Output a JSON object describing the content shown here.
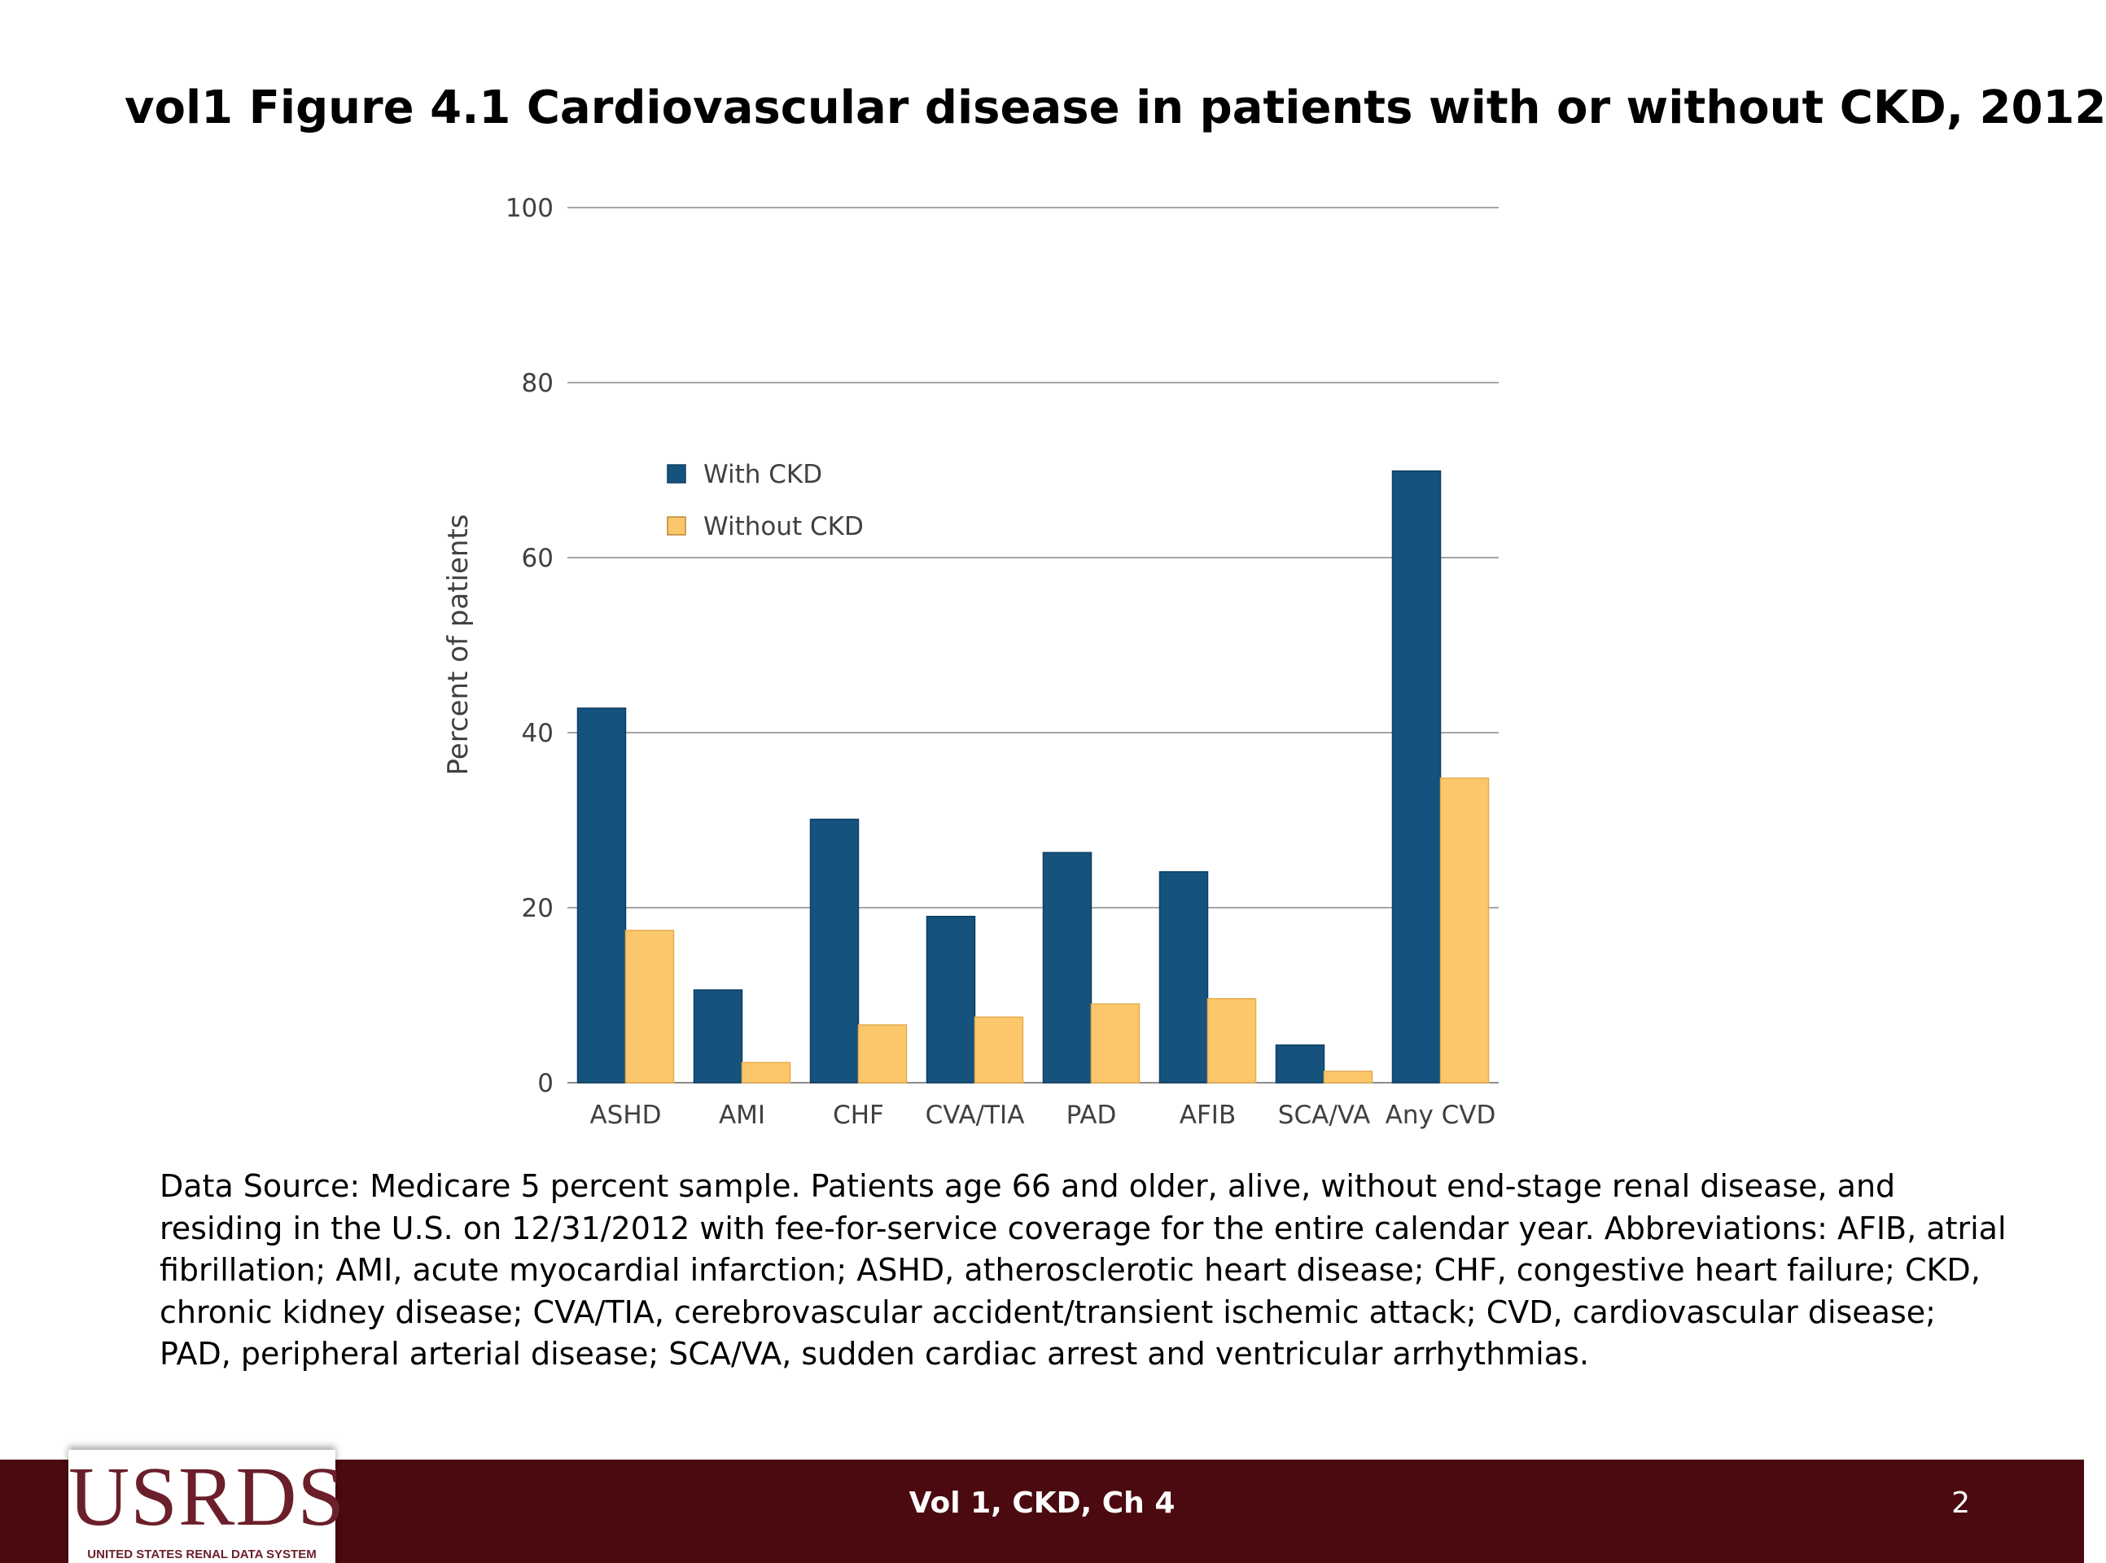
{
  "slide": {
    "title": "vol1  Figure 4.1  Cardiovascular disease in patients with or without CKD, 2012",
    "note": "Data Source: Medicare 5 percent sample. Patients age 66 and older, alive, without end-stage renal disease, and residing in the U.S. on 12/31/2012 with fee-for-service coverage for the entire calendar year. Abbreviations: AFIB, atrial fibrillation; AMI, acute myocardial infarction; ASHD, atherosclerotic heart disease; CHF, congestive heart failure; CKD, chronic kidney disease; CVA/TIA, cerebrovascular accident/transient ischemic attack; CVD, cardiovascular disease; PAD, peripheral arterial disease; SCA/VA, sudden cardiac arrest and ventricular arrhythmias.",
    "footer": "Vol 1, CKD, Ch 4",
    "page_number": "2",
    "logo_text": "USRDS",
    "logo_subtext": "UNITED STATES RENAL DATA SYSTEM"
  },
  "chart_data": {
    "type": "bar",
    "title": "",
    "xlabel": "",
    "ylabel": "Percent of patients",
    "ylim": [
      0,
      100
    ],
    "yticks": [
      0,
      20,
      40,
      60,
      80,
      100
    ],
    "grid": true,
    "legend_position": "top-left",
    "categories": [
      "ASHD",
      "AMI",
      "CHF",
      "CVA/TIA",
      "PAD",
      "AFIB",
      "SCA/VA",
      "Any CVD"
    ],
    "series": [
      {
        "name": "With CKD",
        "color": "#15527e",
        "values": [
          42.8,
          10.6,
          30.1,
          19.0,
          26.3,
          24.1,
          4.3,
          69.9
        ]
      },
      {
        "name": "Without CKD",
        "color": "#fcc66a",
        "values": [
          17.4,
          2.3,
          6.6,
          7.5,
          9.0,
          9.6,
          1.3,
          34.8
        ]
      }
    ]
  }
}
